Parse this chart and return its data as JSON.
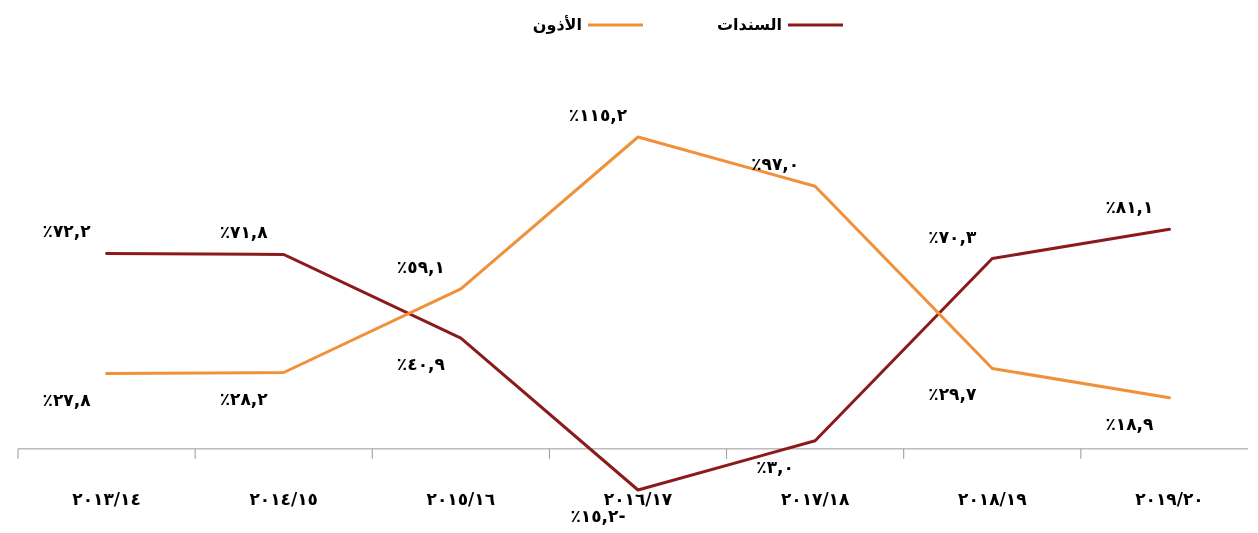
{
  "chart_data": {
    "type": "line",
    "categories": [
      "٢٠١٣/١٤",
      "٢٠١٤/١٥",
      "٢٠١٥/١٦",
      "٢٠١٦/١٧",
      "٢٠١٧/١٨",
      "٢٠١٨/١٩",
      "٢٠١٩/٢٠"
    ],
    "series": [
      {
        "name": "السندات",
        "color": "#8b1a1a",
        "values": [
          72.2,
          71.8,
          40.9,
          -15.2,
          3.0,
          70.3,
          81.1
        ],
        "value_labels": [
          "٧٢,٢٪",
          "٧١,٨٪",
          "٤٠,٩٪",
          "-١٥,٢٪",
          "٣,٠٪",
          "٧٠,٣٪",
          "٨١,١٪"
        ]
      },
      {
        "name": "الأذون",
        "color": "#f0913a",
        "values": [
          27.8,
          28.2,
          59.1,
          115.2,
          97.0,
          29.7,
          18.9
        ],
        "value_labels": [
          "٢٧,٨٪",
          "٢٨,٢٪",
          "٥٩,١٪",
          "١١٥,٢٪",
          "٩٧,٠٪",
          "٢٩,٧٪",
          "١٨,٩٪"
        ]
      }
    ],
    "legend": "top",
    "marker": "none",
    "line_style": "solid"
  }
}
